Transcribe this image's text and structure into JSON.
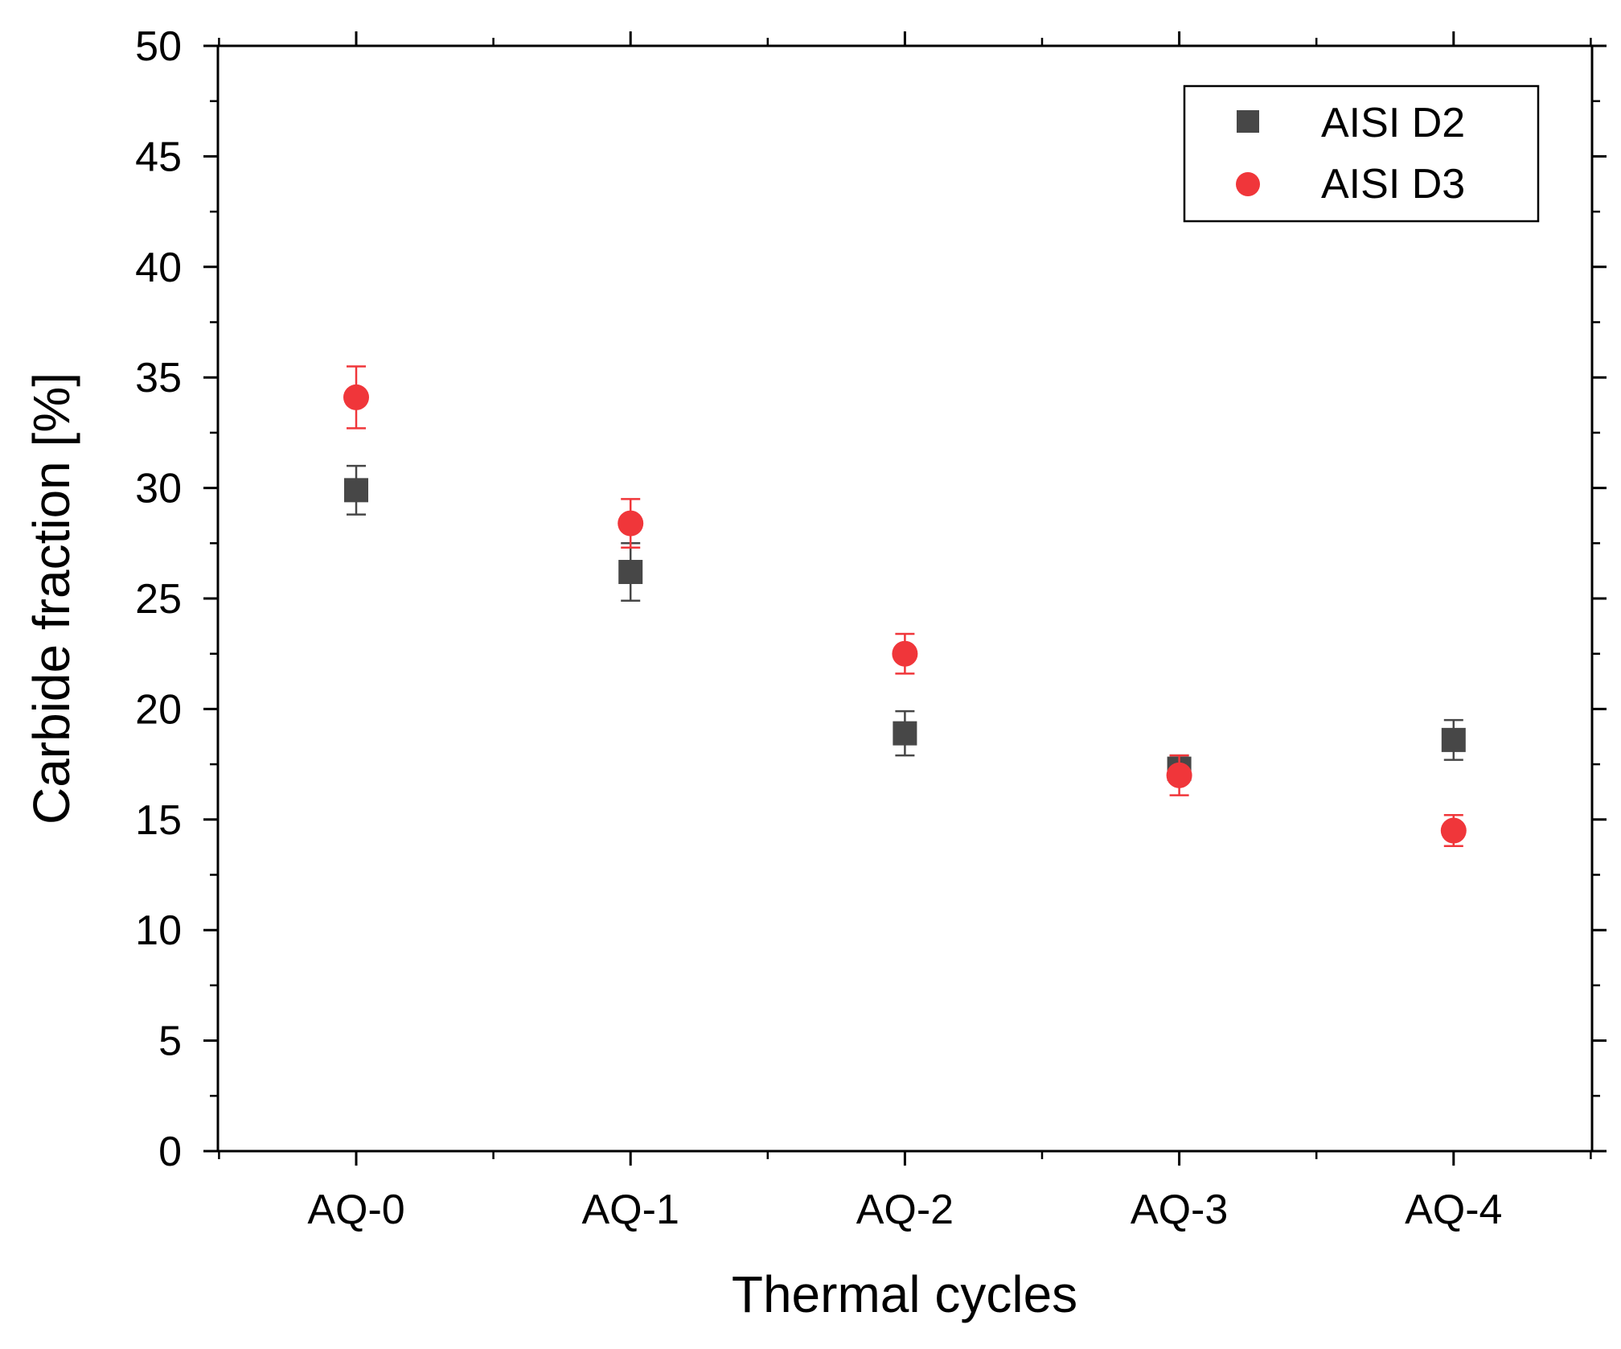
{
  "chart_data": {
    "type": "scatter",
    "title": "",
    "xlabel": "Thermal cycles",
    "ylabel": "Carbide fraction [%]",
    "categories": [
      "AQ-0",
      "AQ-1",
      "AQ-2",
      "AQ-3",
      "AQ-4"
    ],
    "ylim": [
      0,
      50
    ],
    "yticks": [
      0,
      5,
      10,
      15,
      20,
      25,
      30,
      35,
      40,
      45,
      50
    ],
    "yticks_labels": [
      "0",
      "5",
      "10",
      "15",
      "20",
      "25",
      "30",
      "35",
      "40",
      "45",
      "50"
    ],
    "grid": false,
    "legend_position": "top-right",
    "series": [
      {
        "name": "AISI D2",
        "marker": "square",
        "color": "#474747",
        "values": [
          29.9,
          26.2,
          18.9,
          17.3,
          18.6
        ],
        "errors": [
          1.1,
          1.3,
          1.0,
          0.6,
          0.9
        ]
      },
      {
        "name": "AISI D3",
        "marker": "circle",
        "color": "#f0363a",
        "values": [
          34.1,
          28.4,
          22.5,
          17.0,
          14.5
        ],
        "errors": [
          1.4,
          1.1,
          0.9,
          0.9,
          0.7
        ]
      }
    ]
  }
}
